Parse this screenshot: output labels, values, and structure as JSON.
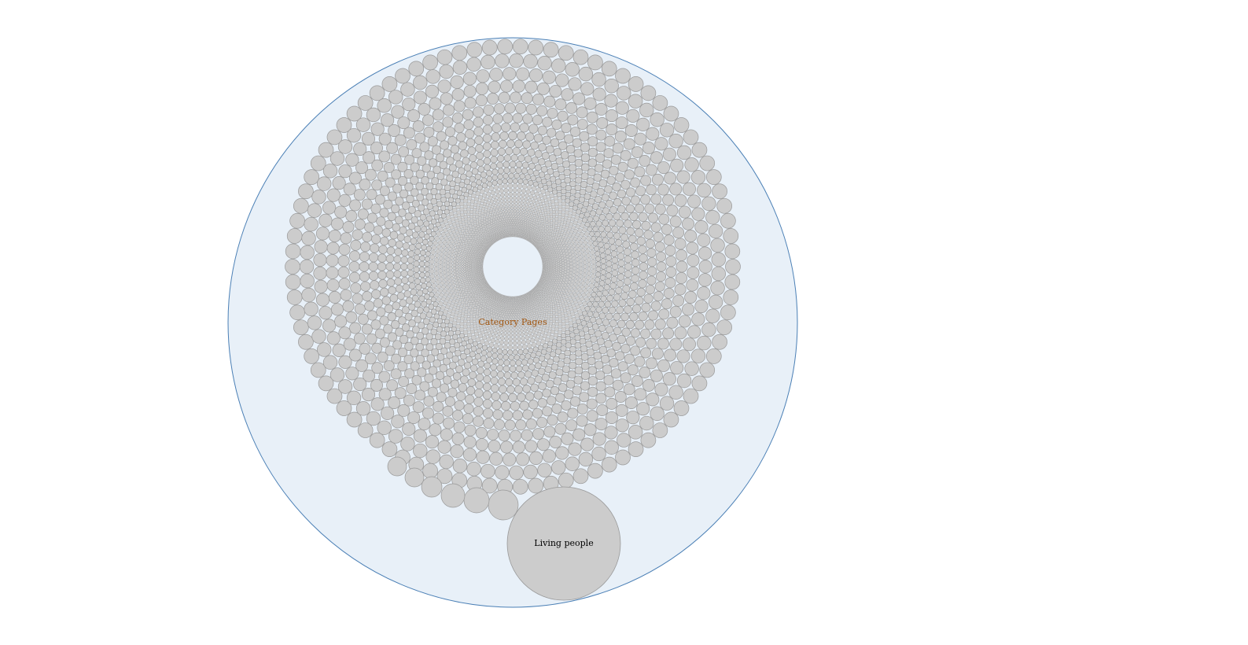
{
  "diagram": {
    "type": "circle-packing",
    "root": {
      "name": "Category Pages",
      "fill": "#e8f0f8",
      "stroke": "#4a7fb5",
      "label_color": "#a0550f"
    },
    "leaf_style": {
      "fill": "#cccccc",
      "stroke": "#999999"
    },
    "highlighted_child": {
      "name": "Living people",
      "label_color": "#000000"
    }
  }
}
